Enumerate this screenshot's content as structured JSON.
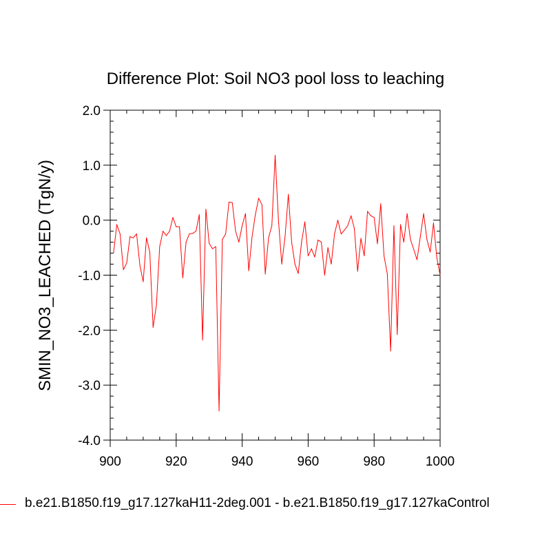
{
  "colors": {
    "series": "#ff0000",
    "axis": "#000000",
    "background": "#ffffff"
  },
  "chart_data": {
    "type": "line",
    "title": "Difference Plot: Soil NO3 pool loss to leaching",
    "xlabel": "",
    "ylabel": "SMIN_NO3_LEACHED  (TgN/y)",
    "xlim": [
      900,
      1000
    ],
    "ylim": [
      -4.0,
      2.0
    ],
    "xticks": [
      900,
      920,
      940,
      960,
      980,
      1000
    ],
    "xtick_labels": [
      "900",
      "920",
      "940",
      "960",
      "980",
      "1000"
    ],
    "yticks": [
      -4.0,
      -3.0,
      -2.0,
      -1.0,
      0.0,
      1.0,
      2.0
    ],
    "ytick_labels": [
      "-4.0",
      "-3.0",
      "-2.0",
      "-1.0",
      "0.0",
      "1.0",
      "2.0"
    ],
    "grid": false,
    "legend_position": "bottom",
    "series": [
      {
        "name": "b.e21.B1850.f19_g17.127kaH11-2deg.001 - b.e21.B1850.f19_g17.127kaControl",
        "color": "#ff0000",
        "x": [
          901,
          902,
          903,
          904,
          905,
          906,
          907,
          908,
          909,
          910,
          911,
          912,
          913,
          914,
          915,
          916,
          917,
          918,
          919,
          920,
          921,
          922,
          923,
          924,
          925,
          926,
          927,
          928,
          929,
          930,
          931,
          932,
          933,
          934,
          935,
          936,
          937,
          938,
          939,
          940,
          941,
          942,
          943,
          944,
          945,
          946,
          947,
          948,
          949,
          950,
          951,
          952,
          953,
          954,
          955,
          956,
          957,
          958,
          959,
          960,
          961,
          962,
          963,
          964,
          965,
          966,
          967,
          968,
          969,
          970,
          971,
          972,
          973,
          974,
          975,
          976,
          977,
          978,
          979,
          980,
          981,
          982,
          983,
          984,
          985,
          986,
          987,
          988,
          989,
          990,
          991,
          992,
          993,
          994,
          995,
          996,
          997,
          998,
          999,
          1000
        ],
        "values": [
          -0.6,
          -0.08,
          -0.25,
          -0.9,
          -0.78,
          -0.3,
          -0.32,
          -0.25,
          -0.82,
          -1.12,
          -0.32,
          -0.58,
          -1.95,
          -1.55,
          -0.48,
          -0.2,
          -0.28,
          -0.2,
          0.05,
          -0.12,
          -0.12,
          -1.05,
          -0.4,
          -0.25,
          -0.24,
          -0.2,
          0.1,
          -2.18,
          0.2,
          -0.42,
          -0.52,
          -0.48,
          -3.47,
          -0.35,
          -0.25,
          0.33,
          0.32,
          -0.2,
          -0.4,
          -0.1,
          0.12,
          -0.92,
          -0.3,
          0.1,
          0.4,
          0.28,
          -0.98,
          -0.32,
          -0.1,
          1.18,
          0.0,
          -0.8,
          -0.3,
          0.47,
          -0.4,
          -0.8,
          -0.97,
          -0.4,
          -0.03,
          -0.65,
          -0.52,
          -0.67,
          -0.36,
          -0.4,
          -1.0,
          -0.5,
          -0.8,
          -0.25,
          0.0,
          -0.25,
          -0.18,
          -0.1,
          0.08,
          -0.15,
          -0.93,
          -0.33,
          -0.65,
          0.16,
          0.08,
          0.05,
          -0.43,
          0.3,
          -0.65,
          -0.98,
          -2.38,
          -0.1,
          -2.08,
          -0.08,
          -0.4,
          0.12,
          -0.35,
          -0.53,
          -0.72,
          -0.3,
          0.12,
          -0.35,
          -0.58,
          -0.05,
          -0.68,
          -1.0
        ]
      }
    ]
  }
}
